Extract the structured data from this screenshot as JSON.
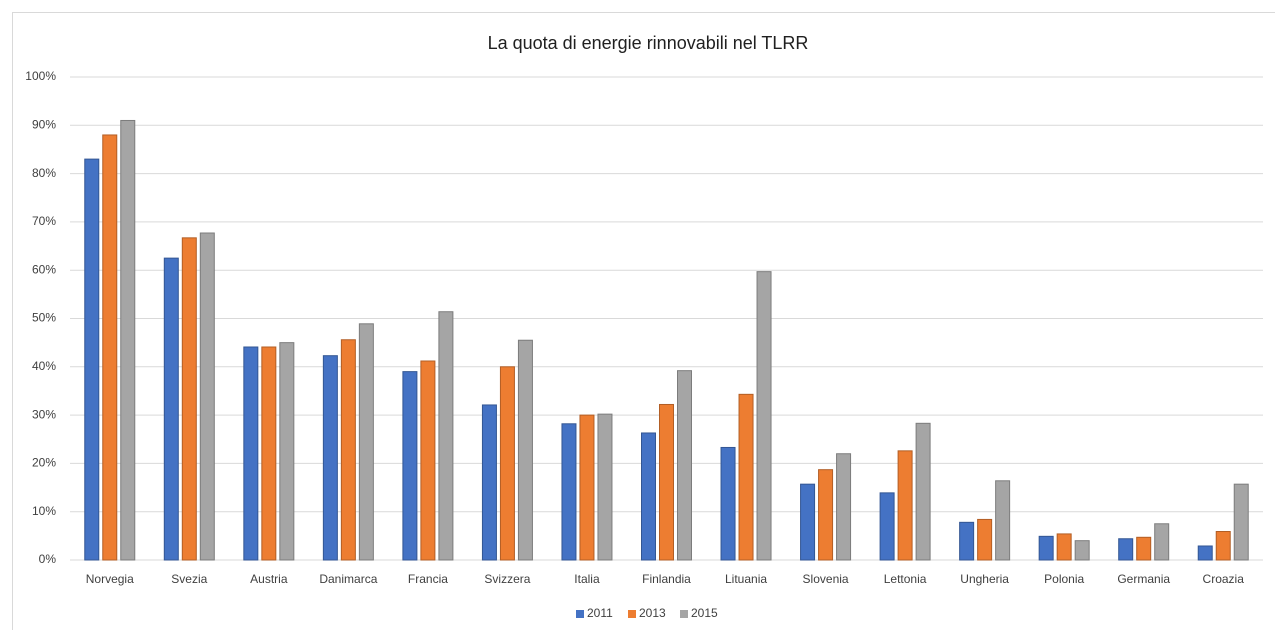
{
  "chart_data": {
    "type": "bar",
    "title": "La quota di energie rinnovabili nel TLRR",
    "categories": [
      "Norvegia",
      "Svezia",
      "Austria",
      "Danimarca",
      "Francia",
      "Svizzera",
      "Italia",
      "Finlandia",
      "Lituania",
      "Slovenia",
      "Lettonia",
      "Ungheria",
      "Polonia",
      "Germania",
      "Croazia"
    ],
    "series": [
      {
        "name": "2011",
        "color": "#4472c4",
        "values": [
          83,
          62.5,
          44.1,
          42.3,
          39,
          32.1,
          28.2,
          26.3,
          23.3,
          15.7,
          13.9,
          7.8,
          4.9,
          4.4,
          2.9
        ]
      },
      {
        "name": "2013",
        "color": "#ed7d31",
        "values": [
          88,
          66.7,
          44.1,
          45.6,
          41.2,
          40,
          30,
          32.2,
          34.3,
          18.7,
          22.6,
          8.4,
          5.4,
          4.7,
          5.9
        ]
      },
      {
        "name": "2015",
        "color": "#a5a5a5",
        "values": [
          91,
          67.7,
          45,
          48.9,
          51.4,
          45.5,
          30.2,
          39.2,
          59.7,
          22,
          28.3,
          16.4,
          4,
          7.5,
          15.7
        ]
      }
    ],
    "ylim": [
      0,
      100
    ],
    "yticks": [
      {
        "value": 0,
        "label": "0%"
      },
      {
        "value": 10,
        "label": "10%"
      },
      {
        "value": 20,
        "label": "20%"
      },
      {
        "value": 30,
        "label": "30%"
      },
      {
        "value": 40,
        "label": "40%"
      },
      {
        "value": 50,
        "label": "50%"
      },
      {
        "value": 60,
        "label": "60%"
      },
      {
        "value": 70,
        "label": "70%"
      },
      {
        "value": 80,
        "label": "80%"
      },
      {
        "value": 90,
        "label": "90%"
      },
      {
        "value": 100,
        "label": "100%"
      }
    ],
    "grid": true,
    "legend": "bottom"
  }
}
